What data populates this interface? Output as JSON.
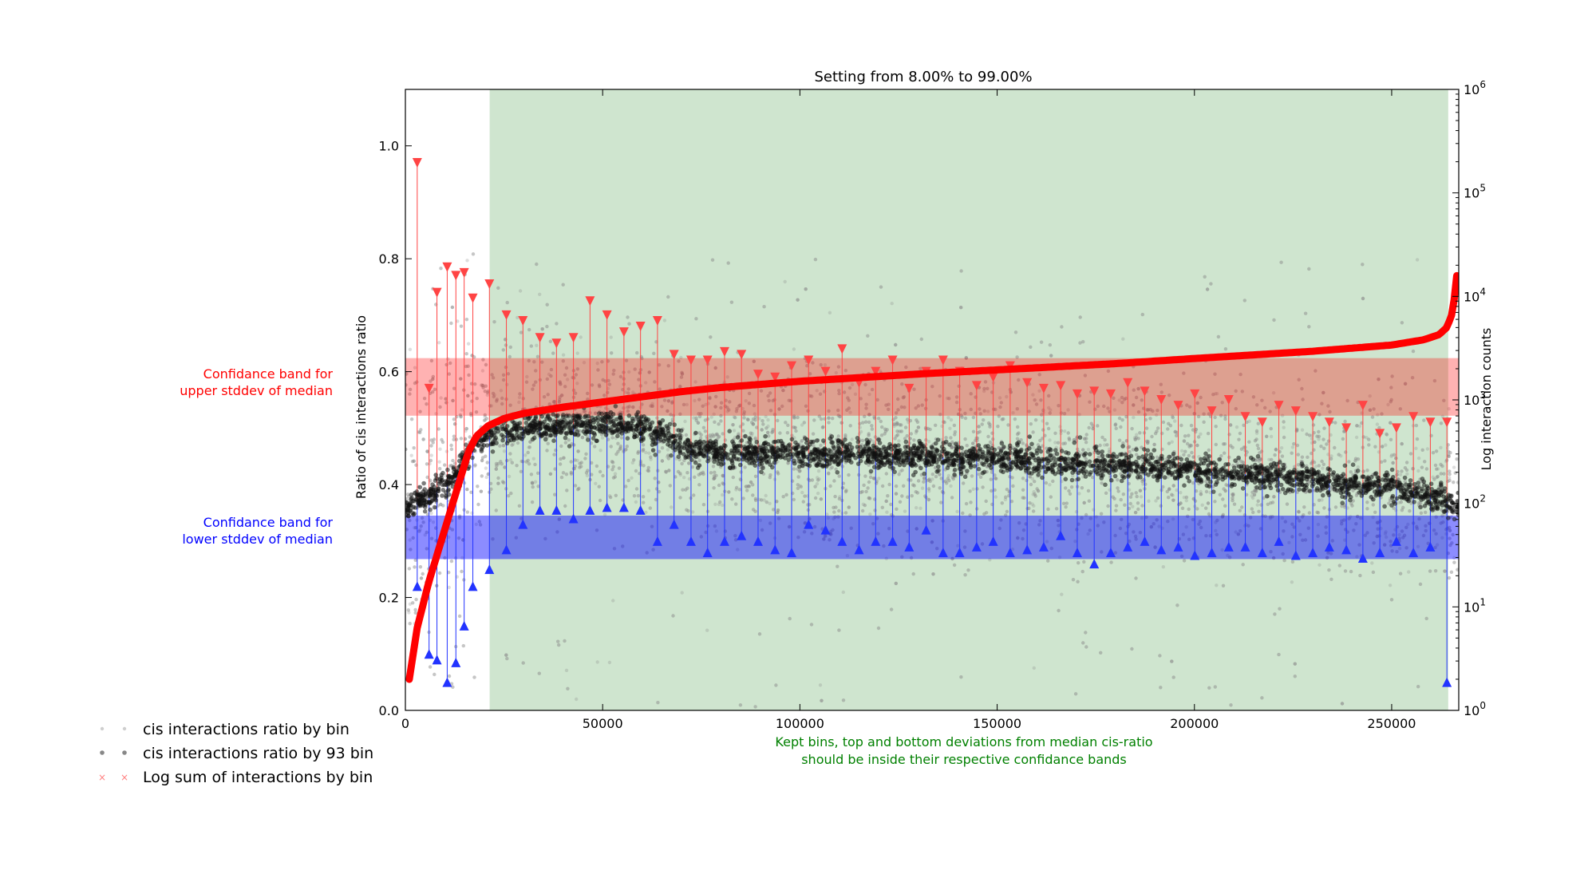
{
  "chart_data": {
    "type": "scatter",
    "title": "Setting from 8.00% to 99.00%",
    "ylabel": "Ratio of cis interactions ratio",
    "y2label": "Log interaction counts",
    "xlabel_lines": [
      "Kept bins, top and bottom deviations from median cis-ratio",
      "should be inside their respective confidance bands"
    ],
    "xlim": [
      0,
      267000
    ],
    "ylim": [
      0,
      1.1
    ],
    "y2lim_log10": [
      0,
      6
    ],
    "x_ticks": [
      0,
      50000,
      100000,
      150000,
      200000,
      250000
    ],
    "x_tick_labels": [
      "0",
      "50000",
      "100000",
      "150000",
      "200000",
      "250000"
    ],
    "y_ticks": [
      0.0,
      0.2,
      0.4,
      0.6,
      0.8,
      1.0
    ],
    "y_tick_labels": [
      "0.0",
      "0.2",
      "0.4",
      "0.6",
      "0.8",
      "1.0"
    ],
    "y2_tick_exponents": [
      0,
      1,
      2,
      3,
      4,
      5,
      6
    ],
    "y2_tick_base": "10",
    "kept_region": {
      "x_start": 21360,
      "x_end": 264330,
      "color": "#cfe5cf"
    },
    "bands": [
      {
        "name": "upper",
        "y_low": 0.522,
        "y_high": 0.624,
        "color": "#ff0000",
        "opacity": 0.3,
        "label_lines": [
          "Confidance band for",
          "upper stddev of median"
        ]
      },
      {
        "name": "lower",
        "y_low": 0.268,
        "y_high": 0.345,
        "color": "#0000ff",
        "opacity": 0.45,
        "label_lines": [
          "Confidance band for",
          "lower stddev of median"
        ]
      }
    ],
    "legend": {
      "position": "bottom-left",
      "entries": [
        {
          "label": "cis interactions ratio by bin",
          "marker": "dot",
          "color": "#bbbbbb"
        },
        {
          "label": "cis interactions ratio by 93 bin",
          "marker": "dot",
          "color": "#555555"
        },
        {
          "label": "Log sum of interactions by bin",
          "marker": "x",
          "color": "#ff8080"
        }
      ]
    },
    "series": [
      {
        "name": "cis interactions ratio by 93 bin",
        "kind": "median_line",
        "color": "#000000",
        "x": [
          1000,
          3000,
          6000,
          9000,
          12000,
          15000,
          18000,
          21000,
          25000,
          30000,
          40000,
          50000,
          55000,
          60000,
          65000,
          70000,
          75000,
          80000,
          100000,
          130000,
          150000,
          180000,
          200000,
          230000,
          250000,
          258000,
          263000,
          266000
        ],
        "y": [
          0.36,
          0.37,
          0.38,
          0.395,
          0.41,
          0.44,
          0.47,
          0.485,
          0.495,
          0.5,
          0.505,
          0.508,
          0.505,
          0.5,
          0.49,
          0.47,
          0.46,
          0.455,
          0.455,
          0.45,
          0.445,
          0.435,
          0.425,
          0.41,
          0.395,
          0.385,
          0.375,
          0.36
        ]
      },
      {
        "name": "Log sum of interactions by bin",
        "kind": "log_curve",
        "color": "#ff0000",
        "axis": "right",
        "x": [
          1000,
          2000,
          3000,
          4000,
          5000,
          6000,
          8000,
          10000,
          12000,
          14000,
          16000,
          18000,
          21000,
          25000,
          30000,
          40000,
          50000,
          60000,
          70000,
          80000,
          100000,
          130000,
          150000,
          180000,
          200000,
          230000,
          250000,
          258000,
          262000,
          264000,
          265500,
          266500
        ],
        "y_log10": [
          0.3,
          0.55,
          0.8,
          0.95,
          1.1,
          1.25,
          1.5,
          1.75,
          2.0,
          2.25,
          2.5,
          2.65,
          2.75,
          2.82,
          2.87,
          2.93,
          2.98,
          3.03,
          3.08,
          3.12,
          3.18,
          3.25,
          3.29,
          3.35,
          3.4,
          3.47,
          3.53,
          3.58,
          3.63,
          3.7,
          3.85,
          4.2
        ]
      },
      {
        "name": "top deviations",
        "kind": "error_markers",
        "color": "#ff4444",
        "marker": "triangle-down",
        "x": [
          3000,
          6000,
          8000,
          10600,
          12800,
          14900,
          17100,
          21300,
          25600,
          29800,
          34100,
          38300,
          42600,
          46800,
          51100,
          55400,
          59600,
          63900,
          68100,
          72400,
          76600,
          80900,
          85200,
          89400,
          93700,
          97900,
          102200,
          106500,
          110700,
          115000,
          119200,
          123500,
          127700,
          132000,
          136300,
          140500,
          144800,
          149000,
          153300,
          157600,
          161800,
          166100,
          170300,
          174600,
          178800,
          183100,
          187400,
          191600,
          195900,
          200100,
          204400,
          208700,
          212900,
          217200,
          221400,
          225700,
          230000,
          234200,
          238500,
          242700,
          247000,
          251200,
          255500,
          259800,
          264000
        ],
        "y": [
          0.97,
          0.57,
          0.74,
          0.785,
          0.77,
          0.775,
          0.73,
          0.755,
          0.7,
          0.69,
          0.66,
          0.65,
          0.66,
          0.725,
          0.7,
          0.67,
          0.68,
          0.69,
          0.63,
          0.62,
          0.62,
          0.635,
          0.63,
          0.595,
          0.59,
          0.61,
          0.62,
          0.6,
          0.64,
          0.58,
          0.6,
          0.62,
          0.57,
          0.6,
          0.62,
          0.6,
          0.575,
          0.59,
          0.61,
          0.58,
          0.57,
          0.575,
          0.56,
          0.565,
          0.56,
          0.58,
          0.565,
          0.55,
          0.54,
          0.56,
          0.53,
          0.55,
          0.52,
          0.51,
          0.54,
          0.53,
          0.52,
          0.51,
          0.5,
          0.54,
          0.49,
          0.5,
          0.52,
          0.51,
          0.51
        ]
      },
      {
        "name": "bottom deviations",
        "kind": "error_markers",
        "color": "#2233ff",
        "marker": "triangle-up",
        "x": [
          3000,
          6000,
          8000,
          10600,
          12800,
          14900,
          17100,
          21300,
          25600,
          29800,
          34100,
          38300,
          42600,
          46800,
          51100,
          55400,
          59600,
          63900,
          68100,
          72400,
          76600,
          80900,
          85200,
          89400,
          93700,
          97900,
          102200,
          106500,
          110700,
          115000,
          119200,
          123500,
          127700,
          132000,
          136300,
          140500,
          144800,
          149000,
          153300,
          157600,
          161800,
          166100,
          170300,
          174600,
          178800,
          183100,
          187400,
          191600,
          195900,
          200100,
          204400,
          208700,
          212900,
          217200,
          221400,
          225700,
          230000,
          234200,
          238500,
          242700,
          247000,
          251200,
          255500,
          259800,
          264000
        ],
        "y": [
          0.22,
          0.1,
          0.09,
          0.05,
          0.085,
          0.15,
          0.22,
          0.25,
          0.285,
          0.33,
          0.355,
          0.355,
          0.34,
          0.355,
          0.36,
          0.36,
          0.355,
          0.3,
          0.33,
          0.3,
          0.28,
          0.3,
          0.31,
          0.3,
          0.285,
          0.28,
          0.33,
          0.32,
          0.3,
          0.285,
          0.3,
          0.3,
          0.29,
          0.32,
          0.28,
          0.28,
          0.29,
          0.3,
          0.28,
          0.285,
          0.29,
          0.31,
          0.28,
          0.26,
          0.28,
          0.29,
          0.3,
          0.285,
          0.29,
          0.275,
          0.28,
          0.29,
          0.29,
          0.28,
          0.3,
          0.275,
          0.28,
          0.29,
          0.285,
          0.27,
          0.28,
          0.3,
          0.28,
          0.29,
          0.05
        ]
      }
    ]
  }
}
